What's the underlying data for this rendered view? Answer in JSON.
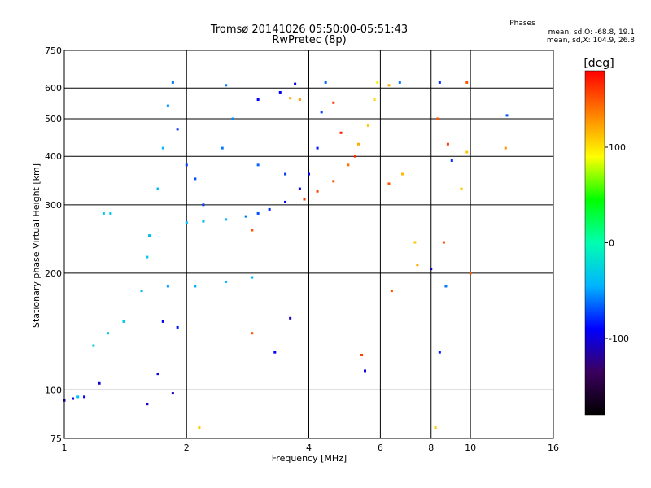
{
  "header": {
    "title_line1": "Tromsø 20141026 05:50:00-05:51:43",
    "title_line2": "RwPretec (8p)",
    "phase_title": "Phases",
    "phase_o": "mean, sd,O: -68.8, 19.1",
    "phase_x": "mean, sd,X: 104.9, 26.8"
  },
  "chart_data": {
    "type": "scatter",
    "title": "Tromsø 20141026 05:50:00-05:51:43",
    "subtitle": "RwPretec (8p)",
    "xlabel": "Frequency [MHz]",
    "ylabel": "Stationary phase Virtual Height [km]",
    "x_scale": "log",
    "y_scale": "log",
    "xlim": [
      1,
      16
    ],
    "ylim": [
      75,
      750
    ],
    "x_ticks": [
      1,
      2,
      4,
      6,
      8,
      10,
      16
    ],
    "x_tick_labels": [
      "1",
      "2",
      "4",
      "6",
      "8",
      "10",
      "16"
    ],
    "y_ticks": [
      75,
      100,
      200,
      300,
      400,
      500,
      600,
      750
    ],
    "y_tick_labels": [
      "75",
      "100",
      "200",
      "300",
      "400",
      "500",
      "600",
      "750"
    ],
    "x_gridlines": [
      2,
      4,
      6,
      8,
      10
    ],
    "y_gridlines": [
      100,
      200,
      300,
      400,
      500,
      600
    ],
    "colorbar": {
      "unit": "[deg]",
      "range": [
        -180,
        180
      ],
      "ticks": [
        100,
        0,
        -100
      ],
      "tick_labels": [
        "100",
        "0",
        "-100"
      ],
      "colors": [
        "#000000",
        "#3b005e",
        "#0000ff",
        "#00b4ff",
        "#00ffb0",
        "#00ff00",
        "#ffff00",
        "#ff8000",
        "#ff0000"
      ]
    },
    "series": [
      {
        "values": [
          {
            "x": 1.0,
            "y": 94,
            "c": -100
          },
          {
            "x": 1.05,
            "y": 95,
            "c": -95
          },
          {
            "x": 1.12,
            "y": 96,
            "c": -90
          },
          {
            "x": 1.22,
            "y": 104,
            "c": -100
          },
          {
            "x": 1.08,
            "y": 96,
            "c": -40
          },
          {
            "x": 1.18,
            "y": 130,
            "c": -30
          },
          {
            "x": 1.28,
            "y": 140,
            "c": -35
          },
          {
            "x": 1.4,
            "y": 150,
            "c": -30
          },
          {
            "x": 1.55,
            "y": 180,
            "c": -40
          },
          {
            "x": 1.6,
            "y": 220,
            "c": -30
          },
          {
            "x": 1.62,
            "y": 250,
            "c": -40
          },
          {
            "x": 1.25,
            "y": 285,
            "c": -30
          },
          {
            "x": 1.3,
            "y": 285,
            "c": -35
          },
          {
            "x": 1.7,
            "y": 330,
            "c": -45
          },
          {
            "x": 1.75,
            "y": 420,
            "c": -40
          },
          {
            "x": 1.8,
            "y": 540,
            "c": -50
          },
          {
            "x": 1.85,
            "y": 620,
            "c": -60
          },
          {
            "x": 1.9,
            "y": 470,
            "c": -80
          },
          {
            "x": 2.0,
            "y": 380,
            "c": -75
          },
          {
            "x": 2.1,
            "y": 350,
            "c": -70
          },
          {
            "x": 2.2,
            "y": 300,
            "c": -75
          },
          {
            "x": 2.0,
            "y": 270,
            "c": -40
          },
          {
            "x": 2.2,
            "y": 272,
            "c": -40
          },
          {
            "x": 2.5,
            "y": 275,
            "c": -45
          },
          {
            "x": 2.8,
            "y": 280,
            "c": -60
          },
          {
            "x": 3.0,
            "y": 285,
            "c": -70
          },
          {
            "x": 3.2,
            "y": 292,
            "c": -80
          },
          {
            "x": 3.5,
            "y": 305,
            "c": -90
          },
          {
            "x": 3.8,
            "y": 330,
            "c": -95
          },
          {
            "x": 4.0,
            "y": 360,
            "c": -95
          },
          {
            "x": 4.2,
            "y": 420,
            "c": -85
          },
          {
            "x": 4.3,
            "y": 520,
            "c": -75
          },
          {
            "x": 4.4,
            "y": 620,
            "c": -65
          },
          {
            "x": 1.8,
            "y": 185,
            "c": -50
          },
          {
            "x": 2.1,
            "y": 185,
            "c": -45
          },
          {
            "x": 2.5,
            "y": 190,
            "c": -45
          },
          {
            "x": 2.9,
            "y": 195,
            "c": -45
          },
          {
            "x": 1.75,
            "y": 150,
            "c": -90
          },
          {
            "x": 1.9,
            "y": 145,
            "c": -85
          },
          {
            "x": 1.7,
            "y": 110,
            "c": -100
          },
          {
            "x": 1.85,
            "y": 98,
            "c": -110
          },
          {
            "x": 1.6,
            "y": 92,
            "c": -105
          },
          {
            "x": 3.0,
            "y": 560,
            "c": -90
          },
          {
            "x": 3.4,
            "y": 585,
            "c": -90
          },
          {
            "x": 3.7,
            "y": 615,
            "c": -95
          },
          {
            "x": 3.6,
            "y": 565,
            "c": 120
          },
          {
            "x": 3.8,
            "y": 560,
            "c": 125
          },
          {
            "x": 2.5,
            "y": 610,
            "c": -60
          },
          {
            "x": 2.6,
            "y": 500,
            "c": -55
          },
          {
            "x": 2.45,
            "y": 420,
            "c": -60
          },
          {
            "x": 3.0,
            "y": 380,
            "c": -65
          },
          {
            "x": 3.5,
            "y": 360,
            "c": -75
          },
          {
            "x": 3.9,
            "y": 310,
            "c": 160
          },
          {
            "x": 4.2,
            "y": 325,
            "c": 155
          },
          {
            "x": 4.6,
            "y": 345,
            "c": 150
          },
          {
            "x": 5.0,
            "y": 380,
            "c": 140
          },
          {
            "x": 5.3,
            "y": 430,
            "c": 120
          },
          {
            "x": 5.6,
            "y": 480,
            "c": 110
          },
          {
            "x": 5.8,
            "y": 560,
            "c": 105
          },
          {
            "x": 5.9,
            "y": 620,
            "c": 95
          },
          {
            "x": 5.2,
            "y": 400,
            "c": 165
          },
          {
            "x": 4.8,
            "y": 460,
            "c": 170
          },
          {
            "x": 4.6,
            "y": 550,
            "c": 160
          },
          {
            "x": 6.3,
            "y": 340,
            "c": 150
          },
          {
            "x": 6.4,
            "y": 180,
            "c": 150
          },
          {
            "x": 6.8,
            "y": 360,
            "c": 115
          },
          {
            "x": 7.3,
            "y": 240,
            "c": 110
          },
          {
            "x": 7.4,
            "y": 210,
            "c": 120
          },
          {
            "x": 8.0,
            "y": 205,
            "c": -110
          },
          {
            "x": 8.3,
            "y": 500,
            "c": 150
          },
          {
            "x": 8.4,
            "y": 620,
            "c": -80
          },
          {
            "x": 8.6,
            "y": 240,
            "c": 150
          },
          {
            "x": 8.8,
            "y": 430,
            "c": 160
          },
          {
            "x": 9.0,
            "y": 390,
            "c": -80
          },
          {
            "x": 9.5,
            "y": 330,
            "c": 110
          },
          {
            "x": 9.8,
            "y": 410,
            "c": 110
          },
          {
            "x": 9.8,
            "y": 620,
            "c": 150
          },
          {
            "x": 10.0,
            "y": 200,
            "c": 150
          },
          {
            "x": 8.4,
            "y": 125,
            "c": -85
          },
          {
            "x": 8.7,
            "y": 185,
            "c": -60
          },
          {
            "x": 12.3,
            "y": 510,
            "c": -70
          },
          {
            "x": 12.2,
            "y": 420,
            "c": 130
          },
          {
            "x": 6.3,
            "y": 610,
            "c": 120
          },
          {
            "x": 6.7,
            "y": 620,
            "c": -60
          },
          {
            "x": 5.4,
            "y": 123,
            "c": 160
          },
          {
            "x": 5.5,
            "y": 112,
            "c": -100
          },
          {
            "x": 3.6,
            "y": 153,
            "c": -110
          },
          {
            "x": 3.3,
            "y": 125,
            "c": -90
          },
          {
            "x": 2.9,
            "y": 140,
            "c": 150
          },
          {
            "x": 2.15,
            "y": 80,
            "c": 110
          },
          {
            "x": 8.2,
            "y": 80,
            "c": 110
          },
          {
            "x": 2.9,
            "y": 258,
            "c": 150
          }
        ]
      }
    ]
  }
}
